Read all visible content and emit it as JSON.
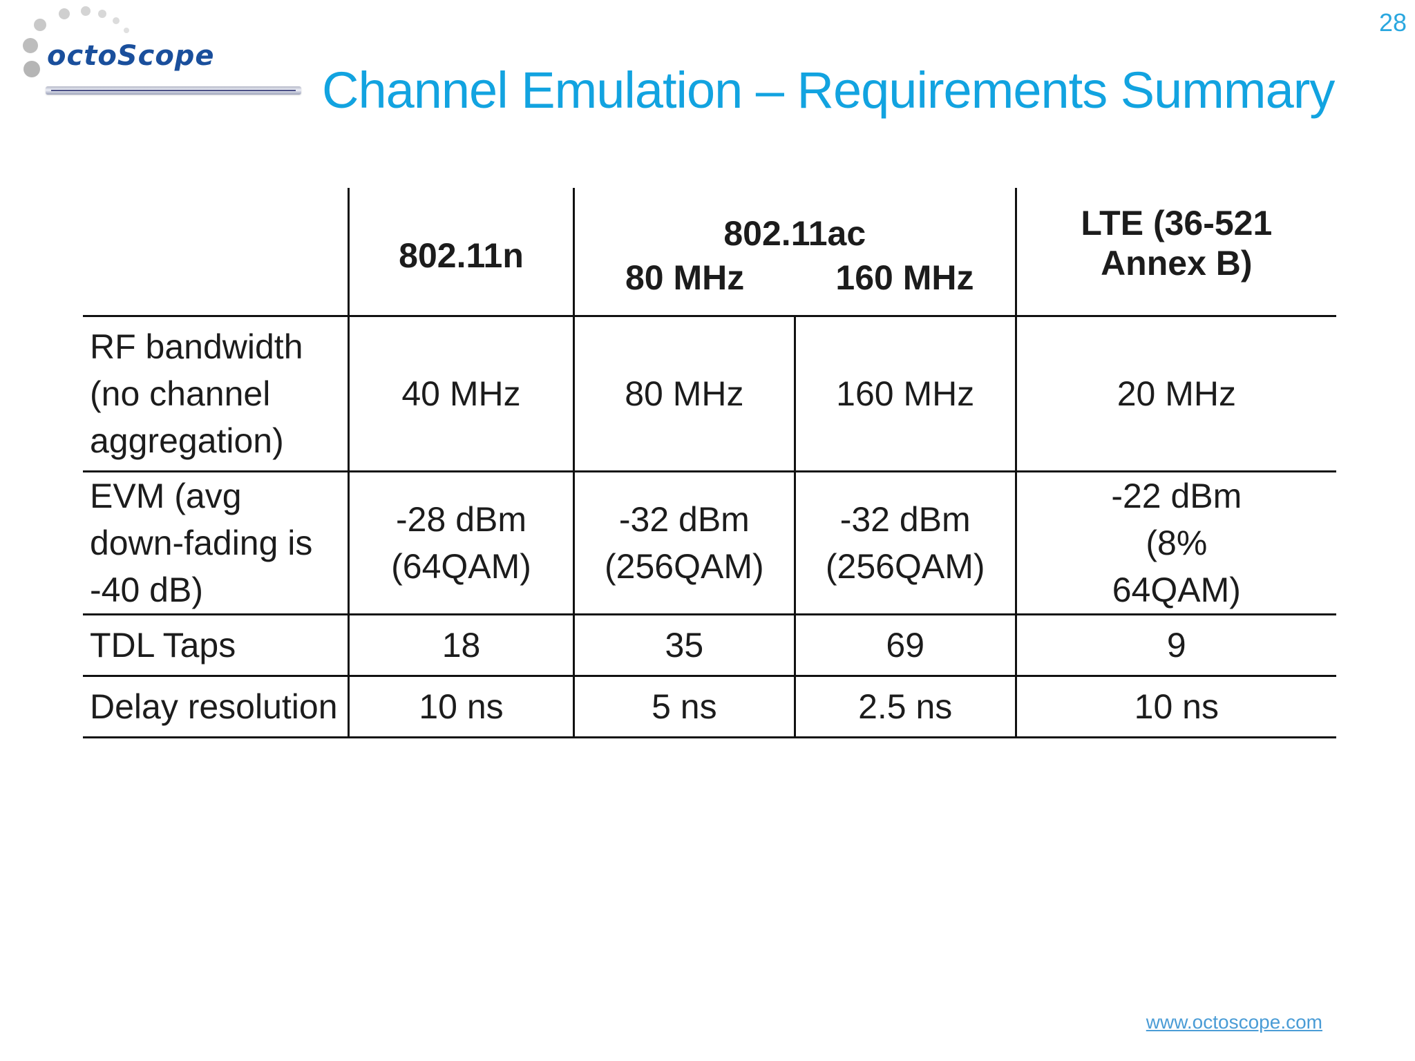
{
  "page_number": "28",
  "logo": {
    "text": "octoScope"
  },
  "title": "Channel Emulation – Requirements Summary",
  "table": {
    "header": {
      "col_80211n": "802.11n",
      "col_80211ac": "802.11ac",
      "sub_80mhz": "80 MHz",
      "sub_160mhz": "160 MHz",
      "col_lte": "LTE (36-521 Annex B)"
    },
    "rows": [
      {
        "label": "RF bandwidth (no channel aggregation)",
        "values": [
          "40 MHz",
          "80 MHz",
          "160 MHz",
          "20 MHz"
        ]
      },
      {
        "label": "EVM (avg down-fading is -40 dB)",
        "values": [
          "-28 dBm (64QAM)",
          "-32 dBm (256QAM)",
          "-32 dBm (256QAM)",
          "-22 dBm (8% 64QAM)"
        ]
      },
      {
        "label": "TDL Taps",
        "values": [
          "18",
          "35",
          "69",
          "9"
        ]
      },
      {
        "label": "Delay resolution",
        "values": [
          "10 ns",
          "5 ns",
          "2.5 ns",
          "10 ns"
        ]
      }
    ]
  },
  "footer": {
    "link": "www.octoscope.com"
  },
  "colors": {
    "title": "#12a3e0",
    "logo_text": "#1a4f9c",
    "rules": "#111111"
  }
}
